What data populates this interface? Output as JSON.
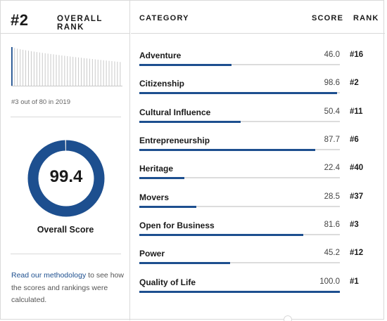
{
  "header": {
    "rank": "#2",
    "rank_label": "OVERALL RANK",
    "col_category": "CATEGORY",
    "col_score": "SCORE",
    "col_rank": "RANK"
  },
  "sparkline": {
    "caption": "#3 out of 80 in 2019",
    "highlight_color": "#1d4f8f"
  },
  "overall": {
    "score": "99.4",
    "score_value": 99.4,
    "label": "Overall Score",
    "ring_color": "#1d4f8f"
  },
  "methodology": {
    "link_text": "Read our methodology",
    "rest_text": " to see how the scores and rankings were calculated."
  },
  "categories": [
    {
      "name": "Adventure",
      "score": "46.0",
      "value": 46.0,
      "rank": "#16"
    },
    {
      "name": "Citizenship",
      "score": "98.6",
      "value": 98.6,
      "rank": "#2"
    },
    {
      "name": "Cultural Influence",
      "score": "50.4",
      "value": 50.4,
      "rank": "#11"
    },
    {
      "name": "Entrepreneurship",
      "score": "87.7",
      "value": 87.7,
      "rank": "#6"
    },
    {
      "name": "Heritage",
      "score": "22.4",
      "value": 22.4,
      "rank": "#40"
    },
    {
      "name": "Movers",
      "score": "28.5",
      "value": 28.5,
      "rank": "#37"
    },
    {
      "name": "Open for Business",
      "score": "81.6",
      "value": 81.6,
      "rank": "#3"
    },
    {
      "name": "Power",
      "score": "45.2",
      "value": 45.2,
      "rank": "#12"
    },
    {
      "name": "Quality of Life",
      "score": "100.0",
      "value": 100.0,
      "rank": "#1"
    }
  ],
  "colors": {
    "accent": "#1d4f8f",
    "track": "#dcdcdc",
    "border": "#d9d9d9"
  }
}
